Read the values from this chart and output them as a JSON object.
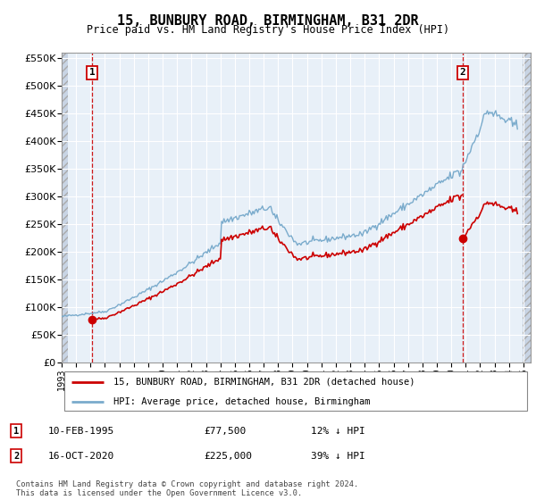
{
  "title": "15, BUNBURY ROAD, BIRMINGHAM, B31 2DR",
  "subtitle": "Price paid vs. HM Land Registry's House Price Index (HPI)",
  "background_color": "#e8f0f8",
  "hatch_color": "#c8d4e4",
  "grid_color": "#ffffff",
  "red_line_color": "#cc0000",
  "blue_line_color": "#7aabcc",
  "sale1_year": 1995.12,
  "sale1_price": 77500,
  "sale2_year": 2020.79,
  "sale2_price": 225000,
  "ylim_min": 0,
  "ylim_max": 560000,
  "yticks": [
    0,
    50000,
    100000,
    150000,
    200000,
    250000,
    300000,
    350000,
    400000,
    450000,
    500000,
    550000
  ],
  "xlim_min": 1993.0,
  "xlim_max": 2025.5,
  "xticks": [
    1993,
    1994,
    1995,
    1996,
    1997,
    1998,
    1999,
    2000,
    2001,
    2002,
    2003,
    2004,
    2005,
    2006,
    2007,
    2008,
    2009,
    2010,
    2011,
    2012,
    2013,
    2014,
    2015,
    2016,
    2017,
    2018,
    2019,
    2020,
    2021,
    2022,
    2023,
    2024,
    2025
  ],
  "legend_label_red": "15, BUNBURY ROAD, BIRMINGHAM, B31 2DR (detached house)",
  "legend_label_blue": "HPI: Average price, detached house, Birmingham",
  "annotation1_date": "10-FEB-1995",
  "annotation1_price": "£77,500",
  "annotation1_hpi": "12% ↓ HPI",
  "annotation2_date": "16-OCT-2020",
  "annotation2_price": "£225,000",
  "annotation2_hpi": "39% ↓ HPI",
  "footer": "Contains HM Land Registry data © Crown copyright and database right 2024.\nThis data is licensed under the Open Government Licence v3.0."
}
